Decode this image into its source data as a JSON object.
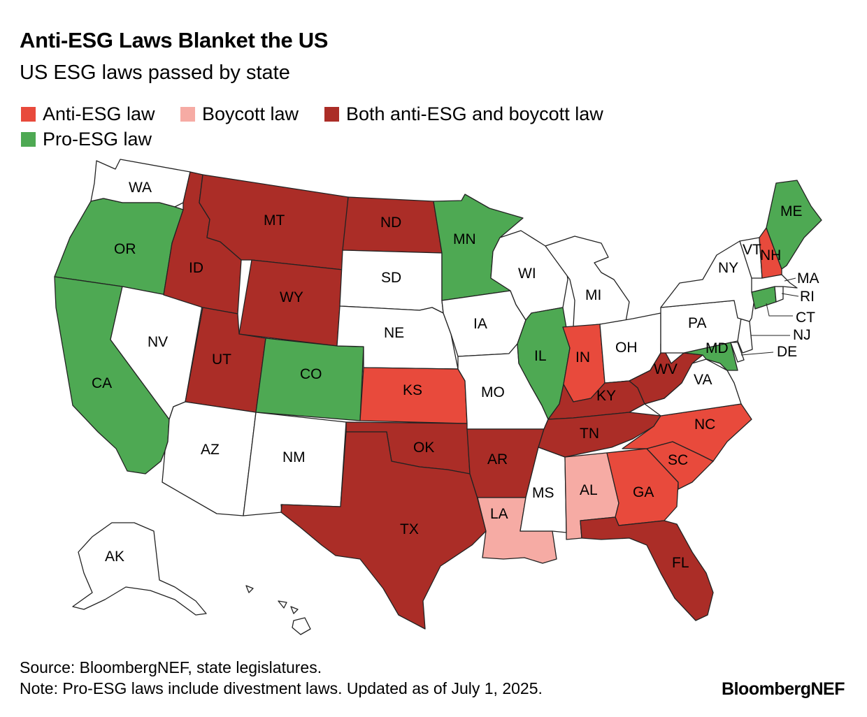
{
  "title": "Anti-ESG Laws Blanket the US",
  "subtitle": "US ESG laws passed by state",
  "colors": {
    "anti": "#e84a3c",
    "boycott": "#f6aba4",
    "both": "#ab2d27",
    "pro": "#4ea953",
    "none": "#ffffff"
  },
  "legend": [
    {
      "key": "anti",
      "label": "Anti-ESG law"
    },
    {
      "key": "boycott",
      "label": "Boycott law"
    },
    {
      "key": "both",
      "label": "Both anti-ESG and boycott law"
    },
    {
      "key": "pro",
      "label": "Pro-ESG law"
    }
  ],
  "states": {
    "WA": "none",
    "OR": "pro",
    "CA": "pro",
    "NV": "none",
    "ID": "both",
    "MT": "both",
    "WY": "both",
    "UT": "both",
    "CO": "pro",
    "AZ": "none",
    "NM": "none",
    "ND": "both",
    "SD": "none",
    "NE": "none",
    "KS": "anti",
    "OK": "both",
    "TX": "both",
    "MN": "pro",
    "IA": "none",
    "MO": "none",
    "AR": "both",
    "LA": "boycott",
    "WI": "none",
    "IL": "pro",
    "MS": "none",
    "MI": "none",
    "IN": "anti",
    "OH": "none",
    "KY": "both",
    "TN": "both",
    "AL": "boycott",
    "GA": "anti",
    "FL": "both",
    "SC": "anti",
    "NC": "anti",
    "VA": "none",
    "WV": "both",
    "MD": "pro",
    "DE": "none",
    "NJ": "none",
    "PA": "none",
    "NY": "none",
    "CT": "pro",
    "RI": "none",
    "MA": "none",
    "VT": "none",
    "NH": "anti",
    "ME": "pro",
    "AK": "none",
    "HI": "none"
  },
  "source": "Source: BloombergNEF, state legislatures.",
  "note": "Note: Pro-ESG laws include divestment laws. Updated as of July 1, 2025.",
  "brand": "BloombergNEF"
}
